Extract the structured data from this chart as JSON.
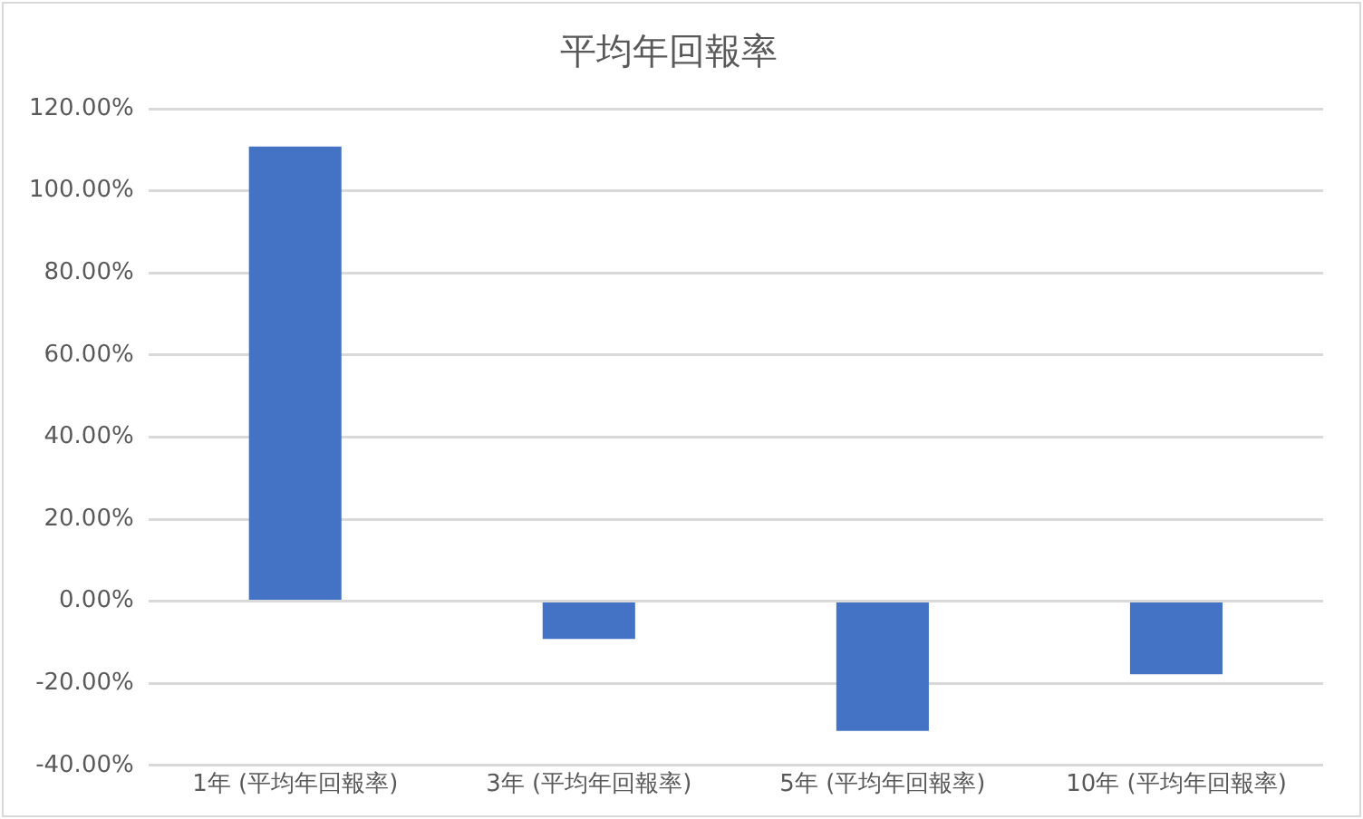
{
  "chart_data": {
    "type": "bar",
    "title": "平均年回報率",
    "categories": [
      "1年 (平均年回報率)",
      "3年 (平均年回報率)",
      "5年 (平均年回報率)",
      "10年 (平均年回報率)"
    ],
    "values": [
      110.8,
      -9.2,
      -31.6,
      -17.8
    ],
    "color": "#4472c4",
    "ylim": [
      -40,
      120
    ],
    "yticks": [
      {
        "value": -40,
        "label": "-40.00%"
      },
      {
        "value": -20,
        "label": "-20.00%"
      },
      {
        "value": 0,
        "label": "0.00%"
      },
      {
        "value": 20,
        "label": "20.00%"
      },
      {
        "value": 40,
        "label": "40.00%"
      },
      {
        "value": 60,
        "label": "60.00%"
      },
      {
        "value": 80,
        "label": "80.00%"
      },
      {
        "value": 100,
        "label": "100.00%"
      },
      {
        "value": 120,
        "label": "120.00%"
      }
    ],
    "grid": "y",
    "legend": false
  }
}
